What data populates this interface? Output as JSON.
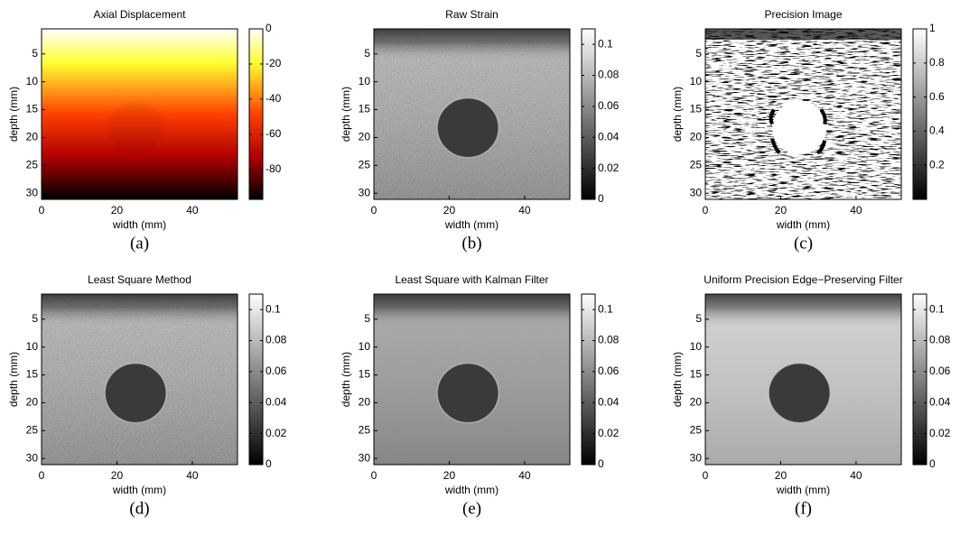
{
  "chart_data": [
    {
      "type": "heatmap",
      "title": "Axial Displacement",
      "xlabel": "width (mm)",
      "ylabel": "depth (mm)",
      "caption": "(a)",
      "colormap": "hot",
      "xlim": [
        0,
        52
      ],
      "xticks": [
        0,
        20,
        40
      ],
      "ylim": [
        0.5,
        31.1
      ],
      "y_reversed": true,
      "yticks": [
        5,
        10,
        15,
        20,
        25,
        30
      ],
      "clim": [
        -97,
        0
      ],
      "cticks": [
        0,
        -20,
        -40,
        -60,
        -80
      ]
    },
    {
      "type": "heatmap",
      "title": "Raw Strain",
      "xlabel": "width (mm)",
      "ylabel": "depth (mm)",
      "caption": "(b)",
      "colormap": "gray",
      "xlim": [
        0,
        52
      ],
      "xticks": [
        0,
        20,
        40
      ],
      "ylim": [
        0.5,
        31.1
      ],
      "y_reversed": true,
      "yticks": [
        5,
        10,
        15,
        20,
        25,
        30
      ],
      "clim": [
        0,
        0.11
      ],
      "cticks": [
        0,
        0.02,
        0.04,
        0.06,
        0.08,
        0.1
      ]
    },
    {
      "type": "heatmap",
      "title": "Precision Image",
      "xlabel": "width (mm)",
      "ylabel": "depth (mm)",
      "caption": "(c)",
      "colormap": "gray",
      "xlim": [
        0,
        52
      ],
      "xticks": [
        0,
        20,
        40
      ],
      "ylim": [
        0.5,
        31.1
      ],
      "y_reversed": true,
      "yticks": [
        5,
        10,
        15,
        20,
        25,
        30
      ],
      "clim": [
        0,
        1
      ],
      "cticks": [
        0.2,
        0.4,
        0.6,
        0.8,
        1
      ]
    },
    {
      "type": "heatmap",
      "title": "Least Square Method",
      "xlabel": "width (mm)",
      "ylabel": "depth (mm)",
      "caption": "(d)",
      "colormap": "gray",
      "xlim": [
        0,
        52
      ],
      "xticks": [
        0,
        20,
        40
      ],
      "ylim": [
        0.5,
        31.1
      ],
      "y_reversed": true,
      "yticks": [
        5,
        10,
        15,
        20,
        25,
        30
      ],
      "clim": [
        0,
        0.11
      ],
      "cticks": [
        0,
        0.02,
        0.04,
        0.06,
        0.08,
        0.1
      ]
    },
    {
      "type": "heatmap",
      "title": "Least Square with Kalman Filter",
      "xlabel": "width (mm)",
      "ylabel": "depth (mm)",
      "caption": "(e)",
      "colormap": "gray",
      "xlim": [
        0,
        52
      ],
      "xticks": [
        0,
        20,
        40
      ],
      "ylim": [
        0.5,
        31.1
      ],
      "y_reversed": true,
      "yticks": [
        5,
        10,
        15,
        20,
        25,
        30
      ],
      "clim": [
        0,
        0.11
      ],
      "cticks": [
        0,
        0.02,
        0.04,
        0.06,
        0.08,
        0.1
      ]
    },
    {
      "type": "heatmap",
      "title": "Uniform Precision Edge−Preserving Filter",
      "xlabel": "width (mm)",
      "ylabel": "depth (mm)",
      "caption": "(f)",
      "colormap": "gray",
      "xlim": [
        0,
        52
      ],
      "xticks": [
        0,
        20,
        40
      ],
      "ylim": [
        0.5,
        31.1
      ],
      "y_reversed": true,
      "yticks": [
        5,
        10,
        15,
        20,
        25,
        30
      ],
      "clim": [
        0,
        0.11
      ],
      "cticks": [
        0,
        0.02,
        0.04,
        0.06,
        0.08,
        0.1
      ]
    }
  ]
}
